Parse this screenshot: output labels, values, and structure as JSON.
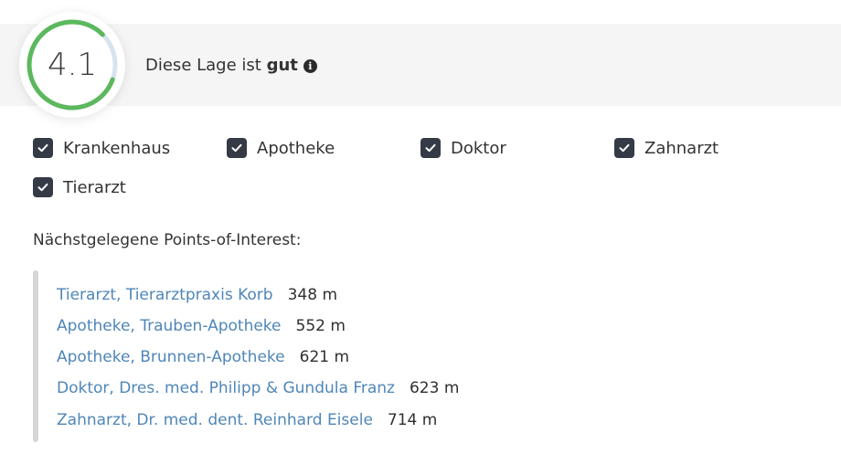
{
  "rating": {
    "score": "4.1",
    "text_prefix": "Diese Lage ist ",
    "text_word": "gut",
    "fill_fraction": 0.82,
    "accent_color": "#5cb85c",
    "track_color": "#d7e3ef",
    "info_icon": "info-icon"
  },
  "filters": [
    {
      "label": "Krankenhaus",
      "checked": true
    },
    {
      "label": "Apotheke",
      "checked": true
    },
    {
      "label": "Doktor",
      "checked": true
    },
    {
      "label": "Zahnarzt",
      "checked": true
    },
    {
      "label": "Tierarzt",
      "checked": true
    }
  ],
  "poi": {
    "heading": "Nächstgelegene Points-of-Interest:",
    "items": [
      {
        "name": "Tierarzt, Tierarztpraxis Korb",
        "distance": "348 m"
      },
      {
        "name": "Apotheke, Trauben-Apotheke",
        "distance": "552 m"
      },
      {
        "name": "Apotheke, Brunnen-Apotheke",
        "distance": "621 m"
      },
      {
        "name": "Doktor, Dres. med. Philipp & Gundula Franz",
        "distance": "623 m"
      },
      {
        "name": "Zahnarzt, Dr. med. dent. Reinhard Eisele",
        "distance": "714 m"
      }
    ],
    "link_color": "#4f86b8"
  }
}
